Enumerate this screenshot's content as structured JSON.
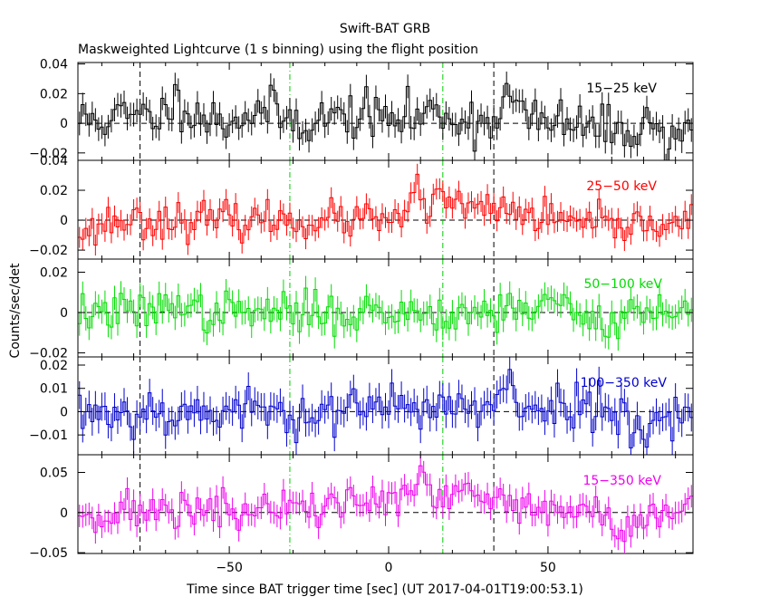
{
  "chart_data": {
    "type": "line",
    "title": "Swift-BAT GRB",
    "subtitle": "Maskweighted Lightcurve (1 s binning) using the flight position",
    "xlabel": "Time since BAT trigger time [sec] (UT 2017-04-01T19:00:53.1)",
    "ylabel": "Counts/sec/det",
    "xlim": [
      -97.5,
      95.5
    ],
    "x_ticks": [
      -50,
      0,
      50
    ],
    "x_tick_labels": [
      "−50",
      "0",
      "50"
    ],
    "bin_seconds": 1,
    "markers": [
      {
        "name": "black-dashed-line-1",
        "x": -78,
        "color": "#000000",
        "style": "dashed"
      },
      {
        "name": "green-dashdot-line-1",
        "x": -31,
        "color": "#00cc00",
        "style": "dashdot"
      },
      {
        "name": "green-dashdot-line-2",
        "x": 17,
        "color": "#00cc00",
        "style": "dashdot"
      },
      {
        "name": "black-dashed-line-2",
        "x": 33,
        "color": "#000000",
        "style": "dashed"
      }
    ],
    "panels": [
      {
        "id": "15-25",
        "label": "15−25 keV",
        "color": "#000000",
        "ylim": [
          -0.025,
          0.041
        ],
        "yticks": [
          0.04,
          0.02,
          0,
          -0.02
        ],
        "ytick_labels": [
          "0.04",
          "0.02",
          "0",
          "−0.02"
        ],
        "noise": 0.008,
        "err": 0.008,
        "seed": 11,
        "features": [
          {
            "x": -80,
            "w": 15,
            "a": 0.004
          },
          {
            "x": -65,
            "w": 4,
            "a": 0.012
          },
          {
            "x": -40,
            "w": 6,
            "a": 0.008
          },
          {
            "x": -10,
            "w": 8,
            "a": 0.006
          },
          {
            "x": 15,
            "w": 6,
            "a": 0.007
          },
          {
            "x": 38,
            "w": 3,
            "a": 0.018
          },
          {
            "x": 70,
            "w": 6,
            "a": -0.005
          },
          {
            "x": 88,
            "w": 2,
            "a": -0.012
          }
        ]
      },
      {
        "id": "25-50",
        "label": "25−50 keV",
        "color": "#ff0000",
        "ylim": [
          -0.026,
          0.04
        ],
        "yticks": [
          0.04,
          0.02,
          0,
          -0.02
        ],
        "ytick_labels": [
          "0.04",
          "0.02",
          "0",
          "−0.02"
        ],
        "noise": 0.006,
        "err": 0.007,
        "seed": 23,
        "features": [
          {
            "x": 9,
            "w": 1.2,
            "a": 0.022
          },
          {
            "x": 15,
            "w": 1.2,
            "a": 0.025
          },
          {
            "x": 25,
            "w": 7,
            "a": 0.009
          },
          {
            "x": 40,
            "w": 5,
            "a": 0.005
          },
          {
            "x": -94,
            "w": 3,
            "a": -0.008
          },
          {
            "x": 70,
            "w": 8,
            "a": -0.005
          }
        ]
      },
      {
        "id": "50-100",
        "label": "50−100 keV",
        "color": "#00dd00",
        "ylim": [
          -0.022,
          0.0265
        ],
        "yticks": [
          0.02,
          0,
          -0.02
        ],
        "ytick_labels": [
          "0.02",
          "0",
          "−0.02"
        ],
        "noise": 0.005,
        "err": 0.006,
        "seed": 37,
        "features": [
          {
            "x": -68,
            "w": 2,
            "a": 0.009
          },
          {
            "x": 50,
            "w": 10,
            "a": 0.004
          },
          {
            "x": 65,
            "w": 4,
            "a": -0.006
          }
        ]
      },
      {
        "id": "100-350",
        "label": "100−350 keV",
        "color": "#0000cc",
        "ylim": [
          -0.0185,
          0.0235
        ],
        "yticks": [
          0.02,
          0.01,
          0,
          -0.01
        ],
        "ytick_labels": [
          "0.02",
          "0.01",
          "0",
          "−0.01"
        ],
        "noise": 0.005,
        "err": 0.006,
        "seed": 53,
        "features": [
          {
            "x": 38,
            "w": 1.5,
            "a": 0.014
          },
          {
            "x": 10,
            "w": 8,
            "a": 0.004
          },
          {
            "x": 80,
            "w": 2,
            "a": -0.01
          },
          {
            "x": 55,
            "w": 6,
            "a": 0.004
          }
        ]
      },
      {
        "id": "15-350",
        "label": "15−350 keV",
        "color": "#ee00ee",
        "ylim": [
          -0.051,
          0.072
        ],
        "yticks": [
          0.05,
          0,
          -0.05
        ],
        "ytick_labels": [
          "0.05",
          "0",
          "−0.05"
        ],
        "noise": 0.013,
        "err": 0.014,
        "seed": 71,
        "features": [
          {
            "x": 5,
            "w": 22,
            "a": 0.016
          },
          {
            "x": 10,
            "w": 1.2,
            "a": 0.035
          },
          {
            "x": 30,
            "w": 8,
            "a": 0.01
          },
          {
            "x": -65,
            "w": 3,
            "a": 0.01
          },
          {
            "x": 72,
            "w": 1.5,
            "a": -0.04
          }
        ]
      }
    ]
  }
}
